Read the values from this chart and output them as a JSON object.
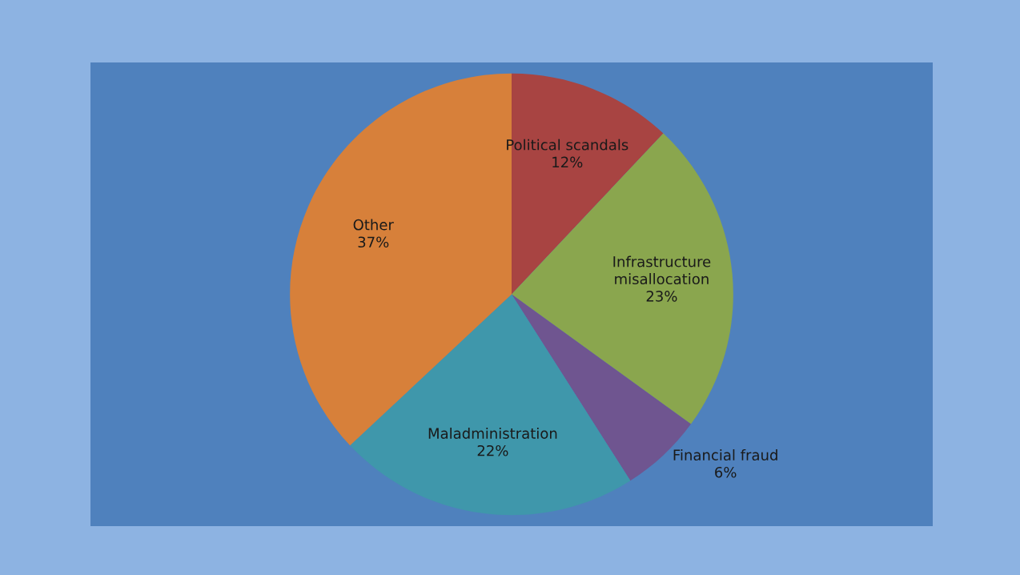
{
  "chart_data": {
    "type": "pie",
    "categories": [
      "Political scandals",
      "Infrastructure misallocation",
      "Financial fraud",
      "Maladministration",
      "Other"
    ],
    "values": [
      12,
      23,
      6,
      22,
      37
    ],
    "value_labels": [
      "12%",
      "23%",
      "6%",
      "22%",
      "37%"
    ],
    "colors": [
      "#a84442",
      "#8aa64e",
      "#6f5590",
      "#3f97ab",
      "#d7803a"
    ],
    "legend": false
  }
}
